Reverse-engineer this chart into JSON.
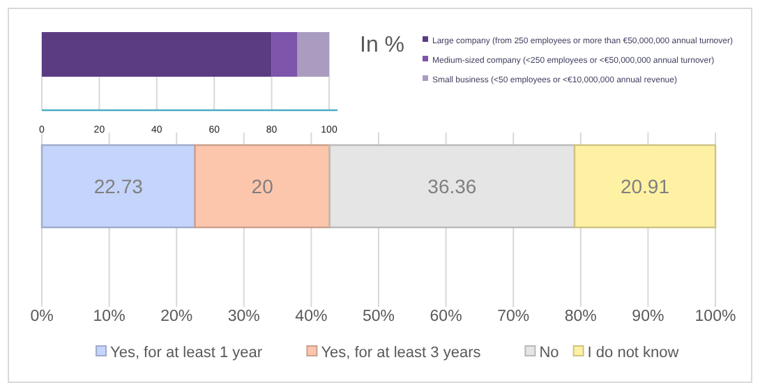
{
  "chart_data": [
    {
      "type": "bar",
      "orientation": "horizontal",
      "stacked": true,
      "categories": [
        null
      ],
      "series": [
        {
          "name": "Large company (from 250 employees or more than €50,000,000 annual turnover)",
          "color": "#5b3c82",
          "values": [
            80
          ]
        },
        {
          "name": "Medium-sized company (<250 employees or <€50,000,000 annual turnover)",
          "color": "#7d55ab",
          "values": [
            9
          ]
        },
        {
          "name": "Small business (<50 employees or <€10,000,000 annual revenue)",
          "color": "#aa9cc0",
          "values": [
            11
          ]
        }
      ],
      "xlim": [
        0,
        100
      ],
      "xticks": [
        0,
        20,
        40,
        60,
        80,
        100
      ],
      "grid": "x",
      "legend": "right"
    },
    {
      "type": "bar",
      "orientation": "horizontal",
      "stacked": true,
      "title": "In %",
      "categories": [
        null
      ],
      "series": [
        {
          "name": "Yes, for at least 1 year",
          "color": "#c5d4fb",
          "values": [
            22.73
          ]
        },
        {
          "name": "Yes, for at least 3 years",
          "color": "#fcc6ad",
          "values": [
            20
          ]
        },
        {
          "name": "No",
          "color": "#e5e5e5",
          "values": [
            36.36
          ]
        },
        {
          "name": "I do not know",
          "color": "#fff1a3",
          "values": [
            20.91
          ]
        }
      ],
      "xlim": [
        0,
        100
      ],
      "xticks": [
        {
          "value": 0,
          "label": "0%"
        },
        {
          "value": 10,
          "label": "10%"
        },
        {
          "value": 20,
          "label": "20%"
        },
        {
          "value": 30,
          "label": "30%"
        },
        {
          "value": 40,
          "label": "40%"
        },
        {
          "value": 50,
          "label": "50%"
        },
        {
          "value": 60,
          "label": "60%"
        },
        {
          "value": 70,
          "label": "70%"
        },
        {
          "value": 80,
          "label": "80%"
        },
        {
          "value": 90,
          "label": "90%"
        },
        {
          "value": 100,
          "label": "100%"
        }
      ],
      "grid": "x",
      "data_labels": true,
      "legend": "bottom"
    }
  ]
}
